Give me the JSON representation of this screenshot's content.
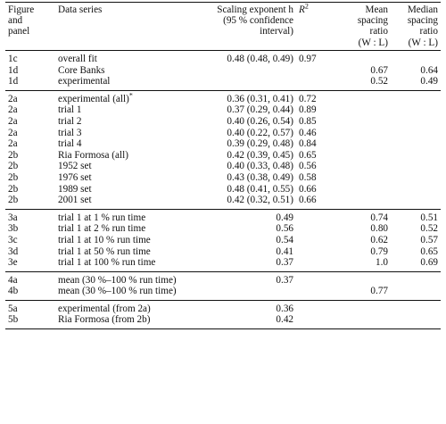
{
  "header": {
    "figure_panel": [
      "Figure",
      "and",
      "panel"
    ],
    "data_series": "Data series",
    "scaling_exponent": [
      "Scaling exponent h",
      "(95 % confidence",
      "interval)"
    ],
    "r2": "R",
    "r2_sup": "2",
    "mean_ratio": [
      "Mean",
      "spacing",
      "ratio",
      "(W : L)"
    ],
    "median_ratio": [
      "Median",
      "spacing",
      "ratio",
      "(W : L)"
    ]
  },
  "groups": [
    {
      "rows": [
        {
          "panel": "1c",
          "series": "overall fit",
          "exponent": "0.48 (0.48, 0.49)",
          "r2": "0.97",
          "mean": "",
          "median": ""
        },
        {
          "panel": "1d",
          "series": "Core Banks",
          "exponent": "",
          "r2": "",
          "mean": "0.67",
          "median": "0.64"
        },
        {
          "panel": "1d",
          "series": "experimental",
          "exponent": "",
          "r2": "",
          "mean": "0.52",
          "median": "0.49"
        }
      ]
    },
    {
      "rows": [
        {
          "panel": "2a",
          "series": "experimental (all)",
          "series_sup": "*",
          "exponent": "0.36 (0.31, 0.41)",
          "r2": "0.72",
          "mean": "",
          "median": ""
        },
        {
          "panel": "2a",
          "series": "trial 1",
          "exponent": "0.37 (0.29, 0.44)",
          "r2": "0.89",
          "mean": "",
          "median": ""
        },
        {
          "panel": "2a",
          "series": "trial 2",
          "exponent": "0.40 (0.26, 0.54)",
          "r2": "0.85",
          "mean": "",
          "median": ""
        },
        {
          "panel": "2a",
          "series": "trial 3",
          "exponent": "0.40 (0.22, 0.57)",
          "r2": "0.46",
          "mean": "",
          "median": ""
        },
        {
          "panel": "2a",
          "series": "trial 4",
          "exponent": "0.39 (0.29, 0.48)",
          "r2": "0.84",
          "mean": "",
          "median": ""
        },
        {
          "panel": "2b",
          "series": "Ria Formosa (all)",
          "exponent": "0.42 (0.39, 0.45)",
          "r2": "0.65",
          "mean": "",
          "median": ""
        },
        {
          "panel": "2b",
          "series": "1952 set",
          "exponent": "0.40 (0.33, 0.48)",
          "r2": "0.56",
          "mean": "",
          "median": ""
        },
        {
          "panel": "2b",
          "series": "1976 set",
          "exponent": "0.43 (0.38, 0.49)",
          "r2": "0.58",
          "mean": "",
          "median": ""
        },
        {
          "panel": "2b",
          "series": "1989 set",
          "exponent": "0.48 (0.41, 0.55)",
          "r2": "0.66",
          "mean": "",
          "median": ""
        },
        {
          "panel": "2b",
          "series": "2001 set",
          "exponent": "0.42 (0.32, 0.51)",
          "r2": "0.66",
          "mean": "",
          "median": ""
        }
      ]
    },
    {
      "rows": [
        {
          "panel": "3a",
          "series": "trial 1 at 1 % run time",
          "exponent": "0.49",
          "r2": "",
          "mean": "0.74",
          "median": "0.51"
        },
        {
          "panel": "3b",
          "series": "trial 1 at 2 % run time",
          "exponent": "0.56",
          "r2": "",
          "mean": "0.80",
          "median": "0.52"
        },
        {
          "panel": "3c",
          "series": "trial 1 at 10 % run time",
          "exponent": "0.54",
          "r2": "",
          "mean": "0.62",
          "median": "0.57"
        },
        {
          "panel": "3d",
          "series": "trial 1 at 50 % run time",
          "exponent": "0.41",
          "r2": "",
          "mean": "0.79",
          "median": "0.65"
        },
        {
          "panel": "3e",
          "series": "trial 1 at 100 % run time",
          "exponent": "0.37",
          "r2": "",
          "mean": "1.0",
          "median": "0.69"
        }
      ]
    },
    {
      "rows": [
        {
          "panel": "4a",
          "series": "mean (30 %–100 % run time)",
          "exponent": "0.37",
          "r2": "",
          "mean": "",
          "median": ""
        },
        {
          "panel": "4b",
          "series": "mean (30 %–100 % run time)",
          "exponent": "",
          "r2": "",
          "mean": "0.77",
          "median": ""
        }
      ]
    },
    {
      "rows": [
        {
          "panel": "5a",
          "series": "experimental (from 2a)",
          "exponent": "0.36",
          "r2": "",
          "mean": "",
          "median": ""
        },
        {
          "panel": "5b",
          "series": "Ria Formosa (from 2b)",
          "exponent": "0.42",
          "r2": "",
          "mean": "",
          "median": ""
        }
      ]
    }
  ]
}
